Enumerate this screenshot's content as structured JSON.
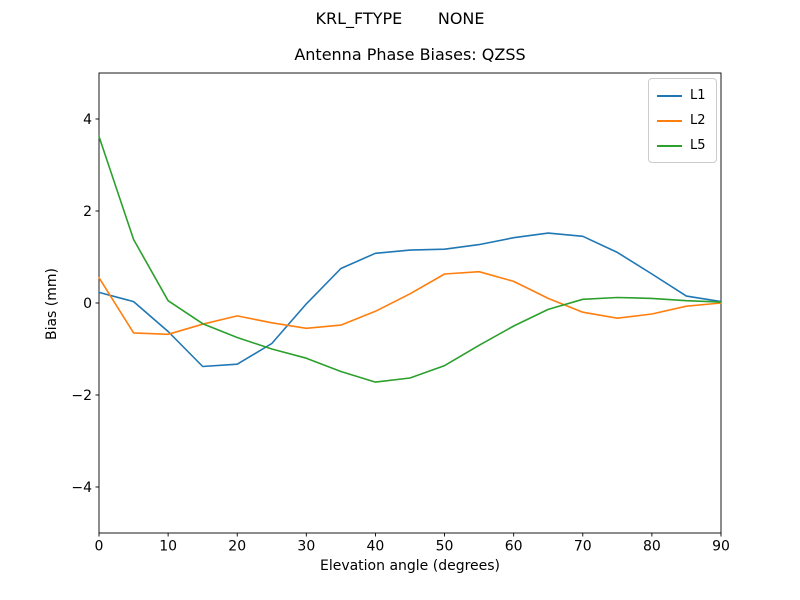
{
  "figure": {
    "suptitle": "KRL_FTYPE       NONE"
  },
  "chart_data": {
    "type": "line",
    "title": "Antenna Phase Biases: QZSS",
    "xlabel": "Elevation angle (degrees)",
    "ylabel": "Bias (mm)",
    "xlim": [
      0,
      90
    ],
    "ylim": [
      -5,
      5
    ],
    "xticks": [
      0,
      10,
      20,
      30,
      40,
      50,
      60,
      70,
      80,
      90
    ],
    "yticks": [
      -4,
      -2,
      0,
      2,
      4
    ],
    "grid": false,
    "legend_position": "upper right",
    "x": [
      0,
      5,
      10,
      15,
      20,
      25,
      30,
      35,
      40,
      45,
      50,
      55,
      60,
      65,
      70,
      75,
      80,
      85,
      90
    ],
    "series": [
      {
        "name": "L1",
        "color": "#1f77b4",
        "values": [
          0.23,
          0.03,
          -0.62,
          -1.38,
          -1.33,
          -0.88,
          -0.02,
          0.75,
          1.08,
          1.15,
          1.17,
          1.27,
          1.42,
          1.52,
          1.45,
          1.1,
          0.63,
          0.15,
          0.03
        ]
      },
      {
        "name": "L2",
        "color": "#ff7f0e",
        "values": [
          0.55,
          -0.65,
          -0.68,
          -0.46,
          -0.28,
          -0.43,
          -0.55,
          -0.48,
          -0.18,
          0.2,
          0.63,
          0.68,
          0.47,
          0.1,
          -0.2,
          -0.33,
          -0.24,
          -0.07,
          0.0
        ]
      },
      {
        "name": "L5",
        "color": "#2ca02c",
        "values": [
          3.62,
          1.38,
          0.05,
          -0.45,
          -0.75,
          -1.0,
          -1.2,
          -1.49,
          -1.72,
          -1.63,
          -1.36,
          -0.92,
          -0.5,
          -0.14,
          0.08,
          0.12,
          0.1,
          0.05,
          0.02
        ]
      }
    ]
  }
}
